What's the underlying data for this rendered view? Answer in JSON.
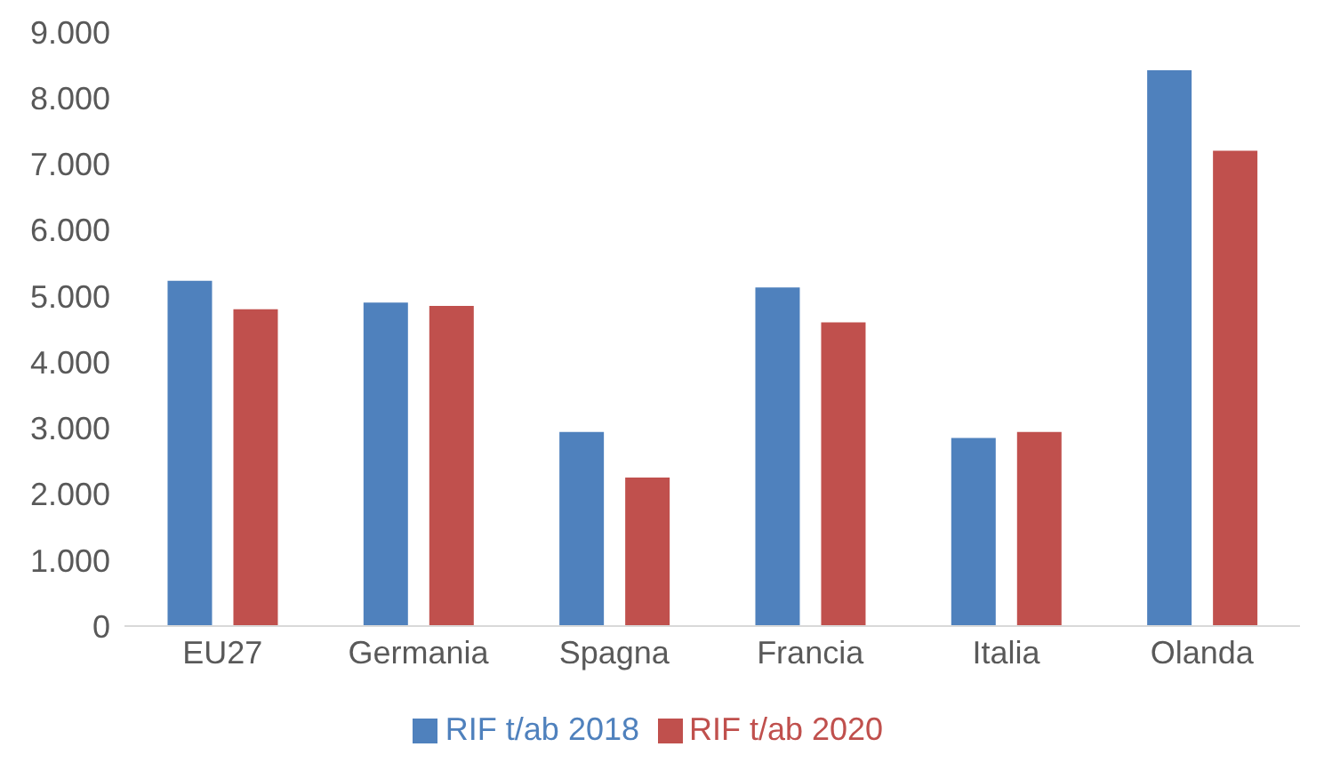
{
  "chart_data": {
    "type": "bar",
    "categories": [
      "EU27",
      "Germania",
      "Spagna",
      "Francia",
      "Italia",
      "Olanda"
    ],
    "series": [
      {
        "name": "RIF t/ab 2018",
        "color": "#4f81bd",
        "values": [
          5230,
          4900,
          2940,
          5130,
          2850,
          8420
        ]
      },
      {
        "name": "RIF t/ab 2020",
        "color": "#c0504d",
        "values": [
          4800,
          4850,
          2250,
          4600,
          2940,
          7200
        ]
      }
    ],
    "ylim": [
      0,
      9000
    ],
    "yticks": [
      {
        "value": 0,
        "label": "0"
      },
      {
        "value": 1000,
        "label": "1.000"
      },
      {
        "value": 2000,
        "label": "2.000"
      },
      {
        "value": 3000,
        "label": "3.000"
      },
      {
        "value": 4000,
        "label": "4.000"
      },
      {
        "value": 5000,
        "label": "5.000"
      },
      {
        "value": 6000,
        "label": "6.000"
      },
      {
        "value": 7000,
        "label": "7.000"
      },
      {
        "value": 8000,
        "label": "8.000"
      },
      {
        "value": 9000,
        "label": "9.000"
      }
    ],
    "legend": "bottom"
  }
}
